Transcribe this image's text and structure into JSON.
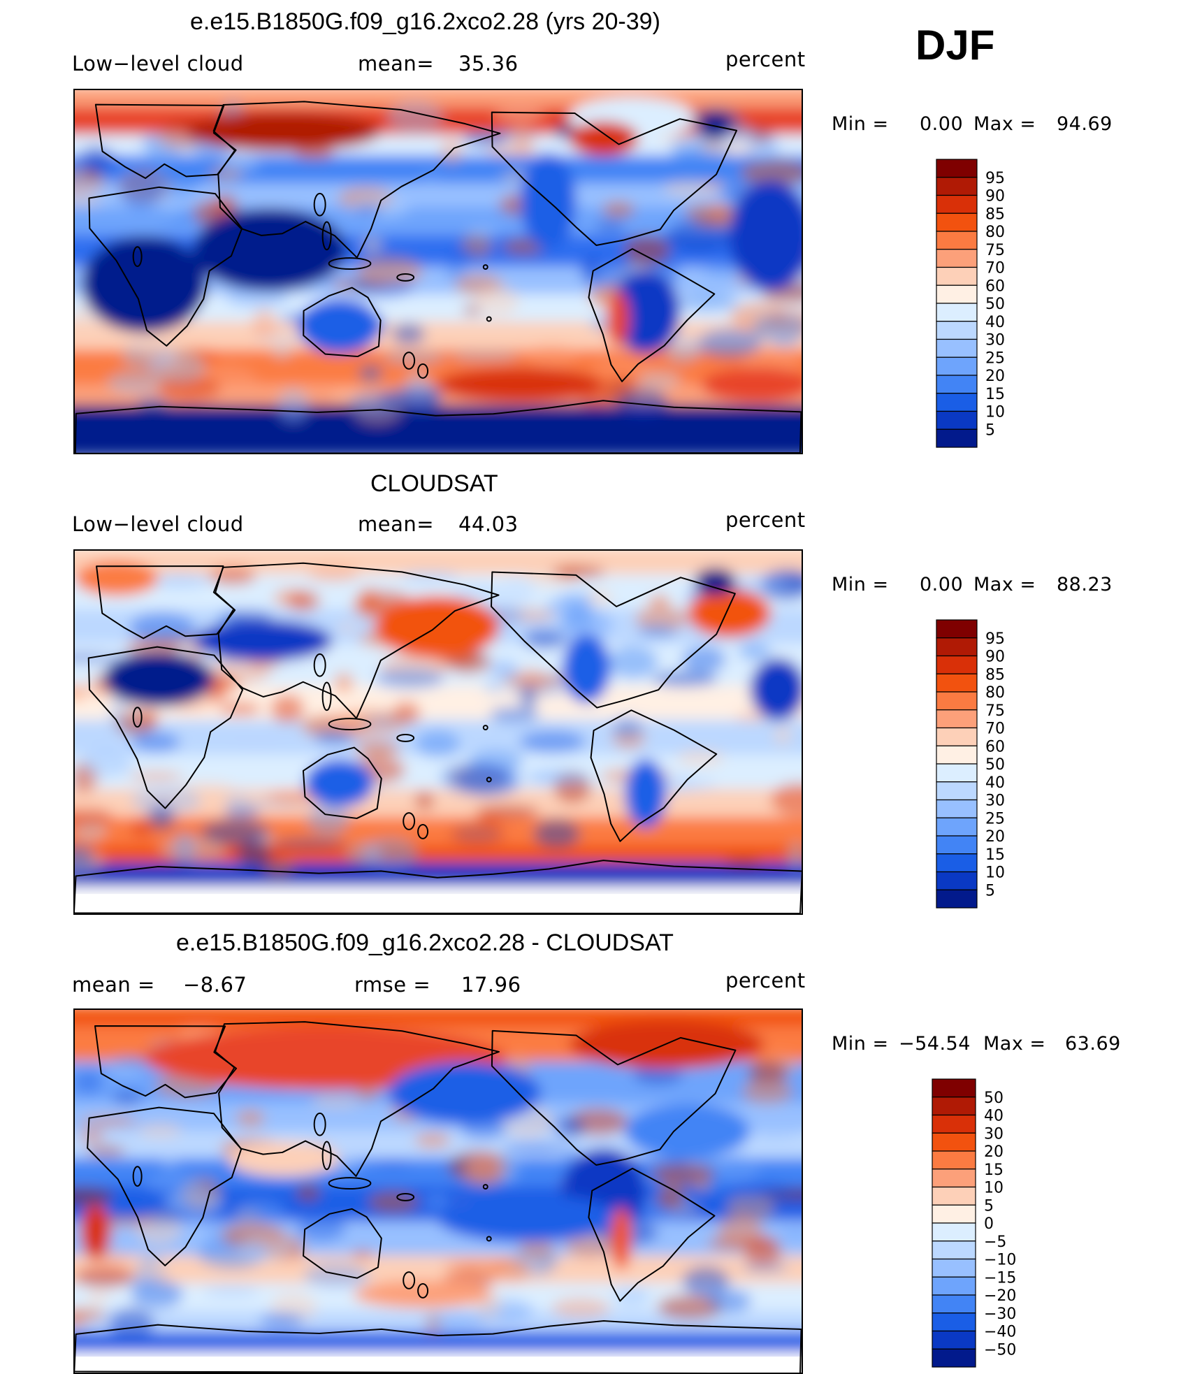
{
  "season": "DJF",
  "panels": [
    {
      "id": "model",
      "title": "e.e15.B1850G.f09_g16.2xco2.28 (yrs 20-39)",
      "left_label": "Low−level cloud",
      "mid_label": "mean=",
      "mid_value": "35.36",
      "right_label": "percent",
      "min_label": "Min =",
      "min_value": "0.00",
      "max_label": "Max =",
      "max_value": "94.69",
      "colorbar": {
        "labels": [
          "95",
          "90",
          "85",
          "80",
          "75",
          "70",
          "60",
          "50",
          "40",
          "30",
          "25",
          "20",
          "15",
          "10",
          "5"
        ],
        "colors": [
          "#7f0000",
          "#b01a05",
          "#d93008",
          "#f2520f",
          "#fb7b42",
          "#fca07a",
          "#fdd0b8",
          "#fff0e4",
          "#dceeff",
          "#bcd8ff",
          "#98c0ff",
          "#6ea4fc",
          "#4284f5",
          "#1a5ee6",
          "#0a39c4",
          "#021a8c"
        ]
      },
      "style": "model"
    },
    {
      "id": "obs",
      "title": "CLOUDSAT",
      "left_label": "Low−level cloud",
      "mid_label": "mean=",
      "mid_value": "44.03",
      "right_label": "percent",
      "min_label": "Min =",
      "min_value": "0.00",
      "max_label": "Max =",
      "max_value": "88.23",
      "colorbar": {
        "labels": [
          "95",
          "90",
          "85",
          "80",
          "75",
          "70",
          "60",
          "50",
          "40",
          "30",
          "25",
          "20",
          "15",
          "10",
          "5"
        ],
        "colors": [
          "#7f0000",
          "#b01a05",
          "#d93008",
          "#f2520f",
          "#fb7b42",
          "#fca07a",
          "#fdd0b8",
          "#fff0e4",
          "#dceeff",
          "#bcd8ff",
          "#98c0ff",
          "#6ea4fc",
          "#4284f5",
          "#1a5ee6",
          "#0a39c4",
          "#021a8c"
        ]
      },
      "style": "obs"
    },
    {
      "id": "diff",
      "title": "e.e15.B1850G.f09_g16.2xco2.28 - CLOUDSAT",
      "left_label": "mean =",
      "left_value": "−8.67",
      "mid_label": "rmse =",
      "mid_value": "17.96",
      "right_label": "percent",
      "min_label": "Min =",
      "min_value": "−54.54",
      "max_label": "Max =",
      "max_value": "63.69",
      "colorbar": {
        "labels": [
          "50",
          "40",
          "30",
          "20",
          "15",
          "10",
          "5",
          "0",
          "−5",
          "−10",
          "−15",
          "−20",
          "−30",
          "−40",
          "−50"
        ],
        "colors": [
          "#7f0000",
          "#b01a05",
          "#d93008",
          "#f2520f",
          "#fb7b42",
          "#fca07a",
          "#fdd0b8",
          "#fff0e4",
          "#dceeff",
          "#bcd8ff",
          "#98c0ff",
          "#6ea4fc",
          "#4284f5",
          "#1a5ee6",
          "#0a39c4",
          "#021a8c"
        ]
      },
      "style": "diff"
    }
  ]
}
